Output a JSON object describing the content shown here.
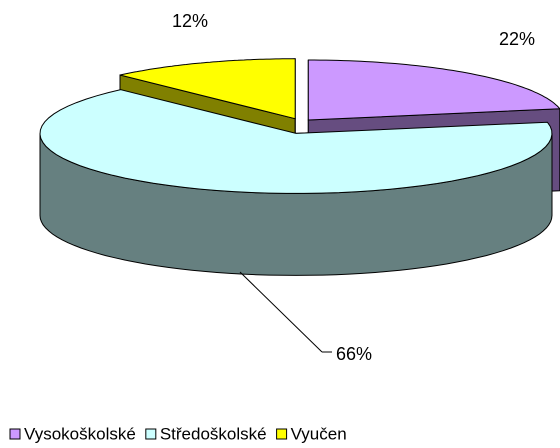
{
  "chart_data": {
    "type": "pie3d",
    "categories": [
      "Vysokoškolské",
      "Středoškolské",
      "Vyučen"
    ],
    "values": [
      22,
      66,
      12
    ],
    "value_labels": [
      "22%",
      "66%",
      "12%"
    ],
    "colors": [
      "#cc99ff",
      "#ccffff",
      "#ffff00"
    ],
    "legend": "bottom"
  }
}
